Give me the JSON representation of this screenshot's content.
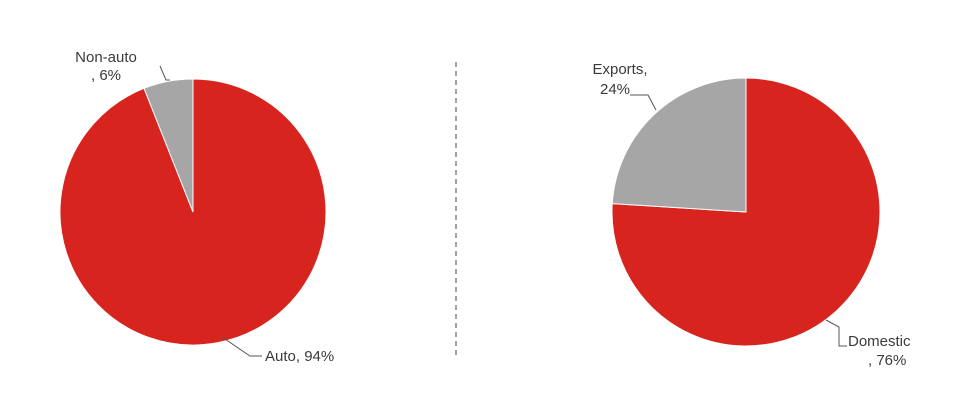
{
  "chart_data": [
    {
      "type": "pie",
      "title": "",
      "start_angle_deg": 0,
      "direction": "clockwise",
      "legend": "none",
      "slices": [
        {
          "label_line1": "Auto, 94%",
          "label_line2": "",
          "category": "Auto",
          "value": 94,
          "color": "#d7241e"
        },
        {
          "label_line1": "Non-auto",
          "label_line2": ", 6%",
          "category": "Non-auto",
          "value": 6,
          "color": "#a6a6a6"
        }
      ]
    },
    {
      "type": "pie",
      "title": "",
      "start_angle_deg": 0,
      "direction": "clockwise",
      "legend": "none",
      "slices": [
        {
          "label_line1": "Domestic",
          "label_line2": ", 76%",
          "category": "Domestic",
          "value": 76,
          "color": "#d7241e"
        },
        {
          "label_line1": "Exports,",
          "label_line2": "24%",
          "category": "Exports",
          "value": 24,
          "color": "#a6a6a6"
        }
      ]
    }
  ],
  "divider": {
    "style": "dashed",
    "color": "#666666"
  }
}
